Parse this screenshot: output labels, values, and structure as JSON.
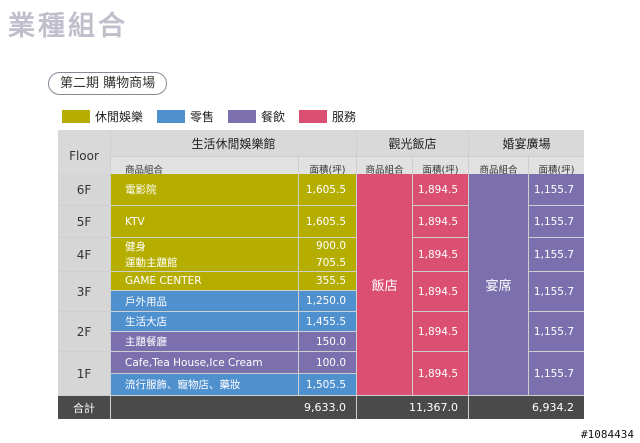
{
  "page_title": "業種組合",
  "phase_label": "第二期 購物商場",
  "legend": [
    {
      "label": "休閒娛樂",
      "color": "#b5ae00"
    },
    {
      "label": "零售",
      "color": "#4f90cf"
    },
    {
      "label": "餐飲",
      "color": "#7b6fae"
    },
    {
      "label": "服務",
      "color": "#db4f73"
    }
  ],
  "table": {
    "floor_header": "Floor",
    "groups": {
      "leisure": {
        "title": "生活休閒娛樂館",
        "sub_name": "商品組合",
        "sub_area": "面積(坪)"
      },
      "hotel": {
        "title": "觀光飯店",
        "sub_name": "商品組合",
        "sub_area": "面積(坪)"
      },
      "banquet": {
        "title": "婚宴廣場",
        "sub_name": "商品組合",
        "sub_area": "面積(坪)"
      }
    },
    "floors": [
      "6F",
      "5F",
      "4F",
      "3F",
      "2F",
      "1F"
    ],
    "leisure_rows": [
      {
        "name": "電影院",
        "area": "1,605.5"
      },
      {
        "name": "KTV",
        "area": "1,605.5"
      },
      {
        "name": "健身",
        "area": "900.0"
      },
      {
        "name": "運動主題館",
        "area": "705.5"
      },
      {
        "name": "GAME CENTER",
        "area": "355.5"
      },
      {
        "name": "戶外用品",
        "area": "1,250.0"
      },
      {
        "name": "生活大店",
        "area": "1,455.5"
      },
      {
        "name": "主題餐廳",
        "area": "150.0"
      },
      {
        "name": "Cafe,Tea House,Ice Cream",
        "area": "100.0"
      },
      {
        "name": "流行服飾、寵物店、藥妝",
        "area": "1,505.5"
      }
    ],
    "hotel_name": "飯店",
    "hotel_areas": [
      "1,894.5",
      "1,894.5",
      "1,894.5",
      "1,894.5",
      "1,894.5",
      "1,894.5"
    ],
    "banquet_name": "宴席",
    "banquet_areas": [
      "1,155.7",
      "1,155.7",
      "1,155.7",
      "1,155.7",
      "1,155.7",
      "1,155.7"
    ],
    "total_label": "合計",
    "total_leisure": "9,633.0",
    "total_hotel": "11,367.0",
    "total_banquet": "6,934.2"
  },
  "watermark": "#1084434"
}
